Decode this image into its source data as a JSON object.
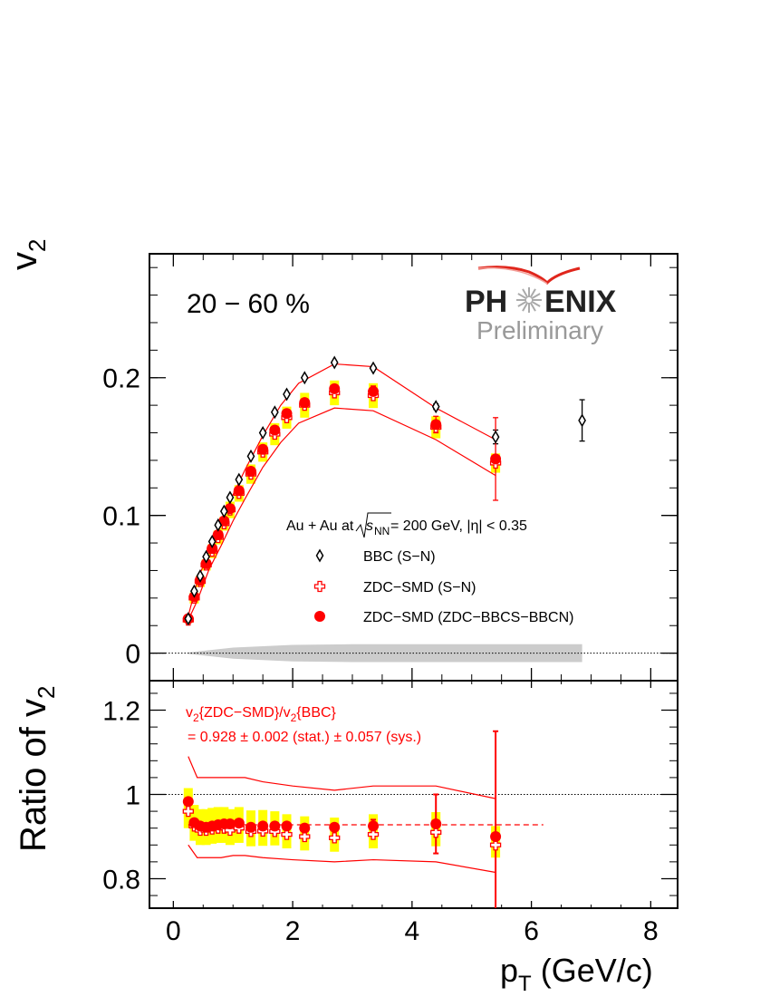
{
  "chart_data": [
    {
      "type": "scatter",
      "panel": "top",
      "ylabel": "v2",
      "ylim": [
        -0.02,
        0.29
      ],
      "yticks": [
        0,
        0.1,
        0.2
      ],
      "ytick_labels": [
        "0",
        "0.1",
        "0.2"
      ],
      "centrality_label": "20 − 60 %",
      "logo": {
        "text_left": "PH",
        "text_right": "ENIX",
        "subtitle": "Preliminary"
      },
      "legend_title_prefix": "Au + Au at",
      "legend_title_s": "s",
      "legend_title_nn": "NN",
      "legend_title_suffix": " = 200 GeV, |η| < 0.35",
      "legend": [
        "BBC (S−N)",
        "ZDC−SMD (S−N)",
        "ZDC−SMD (ZDC−BBCS−BBCN)"
      ],
      "series": [
        {
          "name": "BBC (S−N)",
          "marker": "open-diamond",
          "color": "#000000",
          "x": [
            0.25,
            0.35,
            0.45,
            0.55,
            0.65,
            0.75,
            0.85,
            0.95,
            1.1,
            1.3,
            1.5,
            1.7,
            1.9,
            2.2,
            2.7,
            3.35,
            4.4,
            5.4,
            6.85
          ],
          "y": [
            0.025,
            0.045,
            0.056,
            0.07,
            0.081,
            0.093,
            0.103,
            0.113,
            0.126,
            0.143,
            0.16,
            0.175,
            0.188,
            0.2,
            0.211,
            0.207,
            0.179,
            0.157,
            0.169
          ],
          "err": [
            0,
            0,
            0,
            0,
            0,
            0,
            0,
            0,
            0,
            0,
            0,
            0,
            0,
            0,
            0,
            0,
            0.002,
            0.005,
            0.015
          ]
        },
        {
          "name": "ZDC−SMD (S−N)",
          "marker": "open-cross",
          "color": "#ff0000",
          "x": [
            0.25,
            0.35,
            0.45,
            0.55,
            0.65,
            0.75,
            0.85,
            0.95,
            1.1,
            1.3,
            1.5,
            1.7,
            1.9,
            2.2,
            2.7,
            3.35,
            4.4,
            5.4
          ],
          "y": [
            0.024,
            0.04,
            0.052,
            0.064,
            0.074,
            0.084,
            0.094,
            0.104,
            0.116,
            0.13,
            0.146,
            0.159,
            0.171,
            0.18,
            0.189,
            0.187,
            0.164,
            0.138
          ],
          "err": [
            0.001,
            0.001,
            0.001,
            0.001,
            0.001,
            0.001,
            0.001,
            0.001,
            0.001,
            0.001,
            0.001,
            0.002,
            0.002,
            0.002,
            0.003,
            0.004,
            0.006,
            0.027
          ],
          "sys": [
            0.002,
            0.004,
            0.004,
            0.004,
            0.005,
            0.005,
            0.005,
            0.006,
            0.006,
            0.007,
            0.007,
            0.008,
            0.008,
            0.009,
            0.009,
            0.009,
            0.008,
            0.007
          ]
        },
        {
          "name": "ZDC−SMD (ZDC−BBCS−BBCN)",
          "marker": "filled-circle",
          "color": "#ff0000",
          "x": [
            0.25,
            0.35,
            0.45,
            0.55,
            0.65,
            0.75,
            0.85,
            0.95,
            1.1,
            1.3,
            1.5,
            1.7,
            1.9,
            2.2,
            2.7,
            3.35,
            4.4,
            5.4
          ],
          "y": [
            0.025,
            0.041,
            0.053,
            0.065,
            0.076,
            0.086,
            0.096,
            0.105,
            0.118,
            0.132,
            0.148,
            0.162,
            0.174,
            0.182,
            0.192,
            0.19,
            0.166,
            0.141
          ],
          "err": [
            0.001,
            0.001,
            0.001,
            0.001,
            0.001,
            0.001,
            0.001,
            0.001,
            0.001,
            0.001,
            0.001,
            0.002,
            0.002,
            0.002,
            0.003,
            0.004,
            0.006,
            0.03
          ]
        },
        {
          "name": "",
          "role": "systematic-band",
          "color": "#ff0000",
          "x": [
            0.25,
            0.4,
            0.6,
            0.8,
            1.0,
            1.2,
            1.5,
            1.8,
            2.1,
            2.7,
            3.35,
            4.4,
            5.4
          ],
          "upper": [
            0.027,
            0.052,
            0.075,
            0.096,
            0.115,
            0.133,
            0.158,
            0.18,
            0.196,
            0.21,
            0.208,
            0.178,
            0.155
          ],
          "lower": [
            0.024,
            0.038,
            0.061,
            0.078,
            0.096,
            0.112,
            0.135,
            0.153,
            0.167,
            0.178,
            0.176,
            0.155,
            0.129
          ]
        },
        {
          "name": "",
          "role": "gray-error-band",
          "color": "#cccccc",
          "x": [
            0.25,
            1.0,
            2.0,
            3.0,
            4.0,
            5.0,
            6.85
          ],
          "half_width": [
            0.0005,
            0.004,
            0.006,
            0.0065,
            0.0065,
            0.0065,
            0.0065
          ]
        }
      ]
    },
    {
      "type": "scatter",
      "panel": "bottom",
      "ylabel": "Ratio of v2",
      "ylim": [
        0.73,
        1.27
      ],
      "yticks": [
        0.8,
        1.0,
        1.2
      ],
      "ytick_labels": [
        "0.8",
        "1",
        "1.2"
      ],
      "xlabel": "pT (GeV/c)",
      "xlim": [
        -0.4,
        8.45
      ],
      "xticks": [
        0,
        2,
        4,
        6,
        8
      ],
      "xtick_labels": [
        "0",
        "2",
        "4",
        "6",
        "8"
      ],
      "annotation_line1": "v2{ZDC−SMD}/v2{BBC}",
      "annotation_line2": " = 0.928 ± 0.002 (stat.) ± 0.057 (sys.)",
      "fit_value": 0.928,
      "fit_x_range": [
        0.25,
        6.2
      ],
      "series": [
        {
          "name": "ZDC−SMD (S−N) / BBC",
          "marker": "open-cross",
          "color": "#ff0000",
          "x": [
            0.25,
            0.35,
            0.45,
            0.55,
            0.65,
            0.75,
            0.85,
            0.95,
            1.1,
            1.3,
            1.5,
            1.7,
            1.9,
            2.2,
            2.7,
            3.35,
            4.4,
            5.4
          ],
          "y": [
            0.96,
            0.925,
            0.915,
            0.915,
            0.918,
            0.92,
            0.92,
            0.915,
            0.92,
            0.912,
            0.913,
            0.912,
            0.905,
            0.9,
            0.897,
            0.905,
            0.91,
            0.88
          ],
          "sys": [
            0.04,
            0.035,
            0.035,
            0.035,
            0.035,
            0.035,
            0.035,
            0.035,
            0.035,
            0.035,
            0.035,
            0.033,
            0.033,
            0.033,
            0.033,
            0.033,
            0.033,
            0.03
          ]
        },
        {
          "name": "ZDC−SMD (ZDC−BBCS−BBCN) / BBC",
          "marker": "filled-circle",
          "color": "#ff0000",
          "x": [
            0.25,
            0.35,
            0.45,
            0.55,
            0.65,
            0.75,
            0.85,
            0.95,
            1.1,
            1.3,
            1.5,
            1.7,
            1.9,
            2.2,
            2.7,
            3.35,
            4.4,
            5.4
          ],
          "y": [
            0.983,
            0.933,
            0.925,
            0.922,
            0.925,
            0.928,
            0.93,
            0.93,
            0.932,
            0.922,
            0.925,
            0.925,
            0.925,
            0.92,
            0.922,
            0.925,
            0.93,
            0.9
          ],
          "err": [
            0,
            0,
            0,
            0,
            0,
            0,
            0,
            0,
            0,
            0,
            0,
            0,
            0,
            0,
            0,
            0.015,
            0.07,
            0.25
          ]
        },
        {
          "name": "",
          "role": "systematic-band",
          "color": "#ff0000",
          "x": [
            0.25,
            0.4,
            0.6,
            0.8,
            1.0,
            1.2,
            1.5,
            2.0,
            2.7,
            3.35,
            4.4,
            5.4
          ],
          "upper": [
            1.09,
            1.04,
            1.04,
            1.04,
            1.04,
            1.04,
            1.03,
            1.02,
            1.01,
            1.02,
            1.02,
            0.99
          ],
          "lower": [
            0.88,
            0.85,
            0.85,
            0.85,
            0.855,
            0.855,
            0.85,
            0.845,
            0.84,
            0.845,
            0.84,
            0.815
          ]
        }
      ]
    }
  ]
}
